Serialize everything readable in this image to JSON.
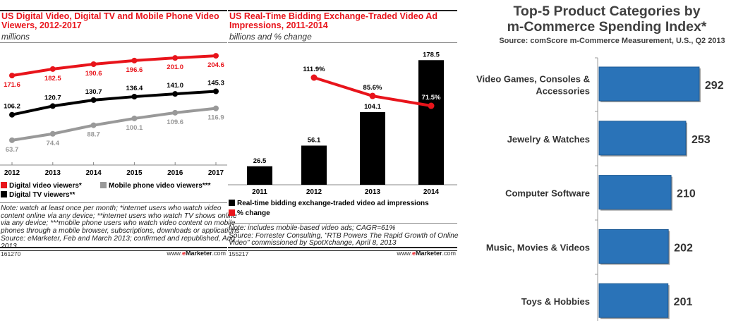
{
  "chart_data": [
    {
      "type": "line",
      "title": "US Digital Video, Digital TV and Mobile Phone Video Viewers, 2012-2017",
      "subtitle": "millions",
      "categories": [
        "2012",
        "2013",
        "2014",
        "2015",
        "2016",
        "2017"
      ],
      "series": [
        {
          "name": "Digital video viewers*",
          "color": "#e8141b",
          "values": [
            171.6,
            182.5,
            190.6,
            196.6,
            201.0,
            204.6
          ],
          "labels": [
            "171.6",
            "182.5",
            "190.6",
            "196.6",
            "201.0",
            "204.6"
          ]
        },
        {
          "name": "Digital TV viewers**",
          "color": "#000000",
          "values": [
            106.2,
            120.7,
            130.7,
            136.4,
            141.0,
            145.3
          ],
          "labels": [
            "106.2",
            "120.7",
            "130.7",
            "136.4",
            "141.0",
            "145.3"
          ]
        },
        {
          "name": "Mobile phone video viewers***",
          "color": "#999999",
          "values": [
            63.7,
            74.4,
            88.7,
            100.1,
            109.6,
            116.9
          ],
          "labels": [
            "63.7",
            "74.4",
            "88.7",
            "100.1",
            "109.6",
            "116.9"
          ]
        }
      ],
      "note": [
        "Note: watch at least once per month; *internet users who watch video",
        "content online via any device; **internet users who watch TV shows online",
        "via any device; ***mobile phone users who watch video content on mobile",
        "phones through a mobile browser, subscriptions, downloads or applications",
        "Source: eMarketer, Feb and March 2013; confirmed and republished, Aug",
        "2013"
      ],
      "id_label": "161270",
      "brand": "www.eMarketer.com"
    },
    {
      "type": "bar",
      "title": "US Real-Time Bidding Exchange-Traded Video Ad Impressions, 2011-2014",
      "subtitle": "billions and % change",
      "categories": [
        "2011",
        "2012",
        "2013",
        "2014"
      ],
      "series": [
        {
          "name": "Real-time bidding exchange-traded video ad impressions",
          "color": "#000000",
          "values": [
            26.5,
            56.1,
            104.1,
            178.5
          ],
          "labels": [
            "26.5",
            "56.1",
            "104.1",
            "178.5"
          ]
        },
        {
          "name": "% change",
          "color": "#e8141b",
          "type": "line",
          "values": [
            null,
            111.9,
            85.6,
            71.5
          ],
          "labels": [
            "",
            "111.9%",
            "85.6%",
            "71.5%"
          ]
        }
      ],
      "note": [
        "Note: includes mobile-based video ads; CAGR=61%",
        "Source: Forrester Consulting, \"RTB Powers The Rapid Growth of Online",
        "Video\" commissioned by SpotXchange, April 8, 2013"
      ],
      "id_label": "155217",
      "brand": "www.eMarketer.com"
    },
    {
      "type": "bar",
      "orientation": "horizontal",
      "title": "Top-5 Product Categories by m-Commerce Spending Index*",
      "title_lines": [
        "Top-5 Product Categories by",
        "m-Commerce Spending Index*"
      ],
      "subtitle": "Source: comScore m-Commerce Measurement, U.S., Q2 2013",
      "categories": [
        "Video Games, Consoles & Accessories",
        "Jewelry & Watches",
        "Computer Software",
        "Music, Movies & Videos",
        "Toys & Hobbies"
      ],
      "category_lines": [
        [
          "Video Games, Consoles &",
          "Accessories"
        ],
        [
          "Jewelry & Watches"
        ],
        [
          "Computer Software"
        ],
        [
          "Music, Movies & Videos"
        ],
        [
          "Toys & Hobbies"
        ]
      ],
      "values": [
        292,
        253,
        210,
        202,
        201
      ],
      "labels": [
        "292",
        "253",
        "210",
        "202",
        "201"
      ],
      "color": "#2a73b8"
    }
  ]
}
